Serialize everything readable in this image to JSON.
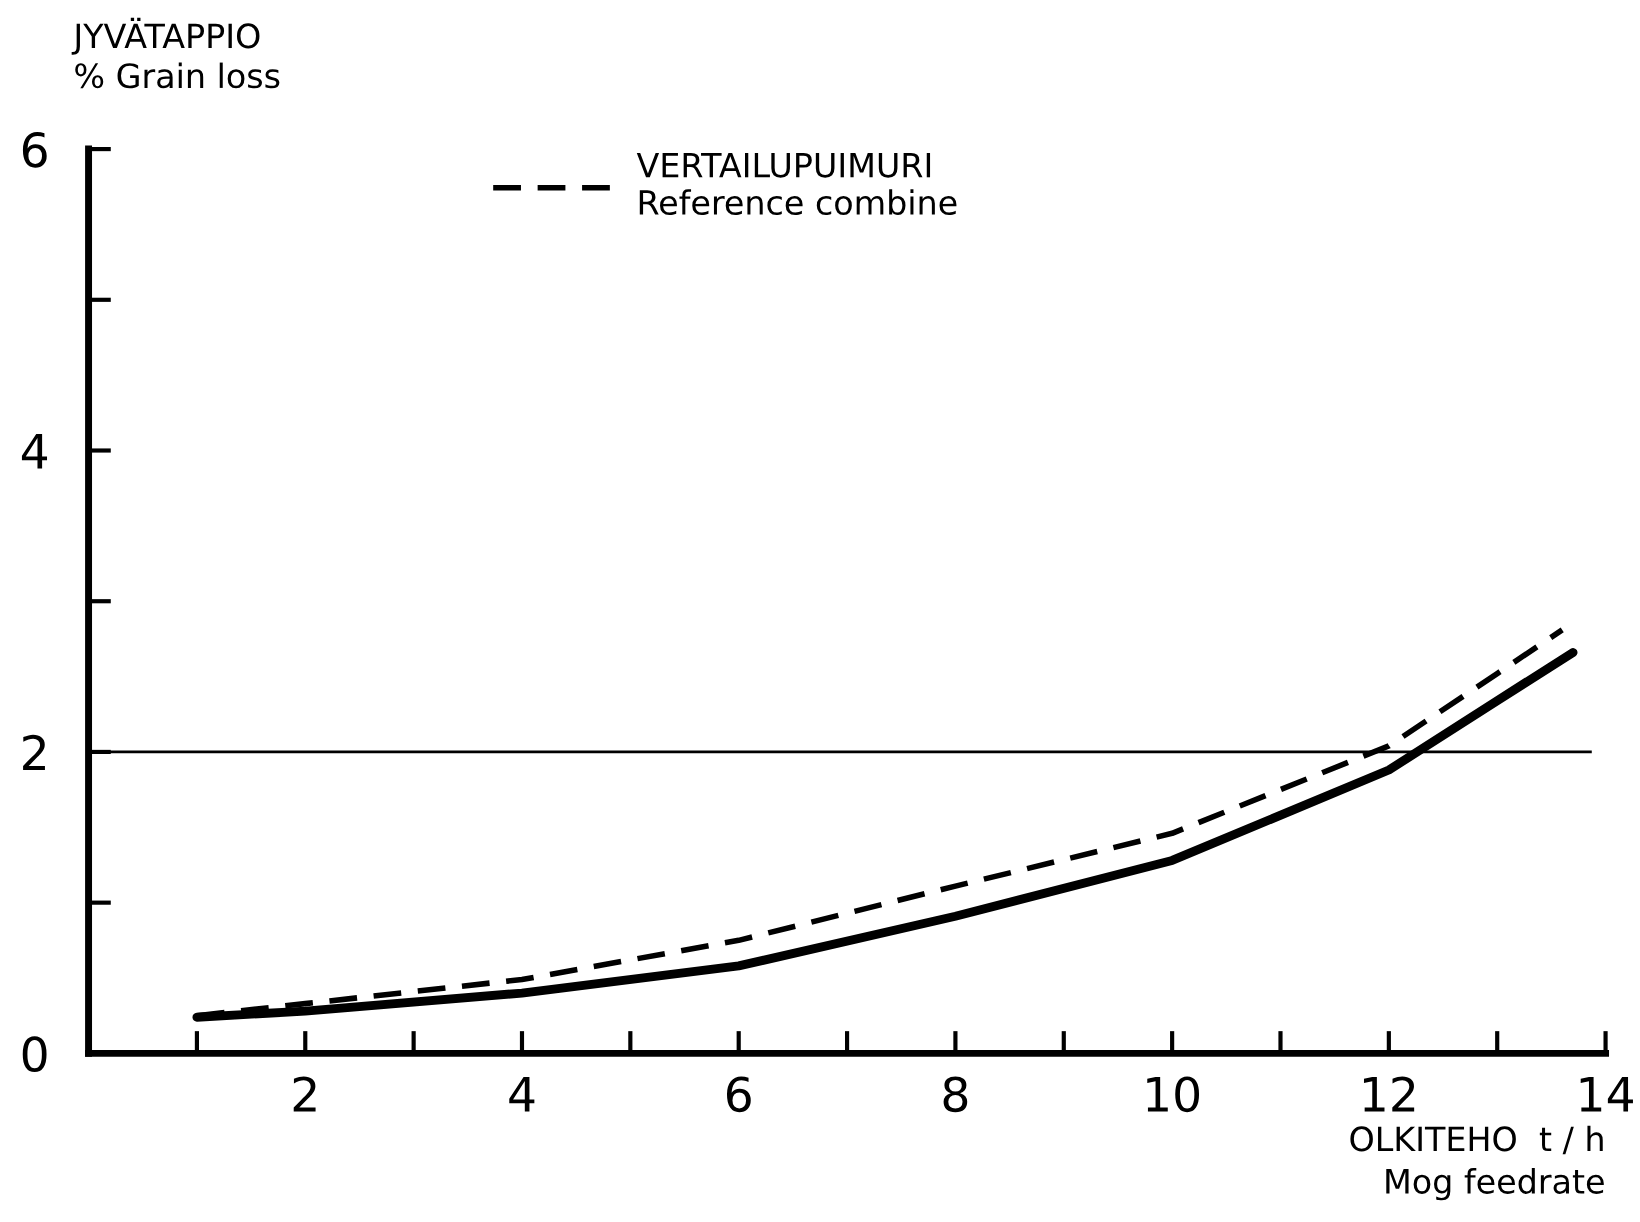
{
  "chart_data": {
    "type": "line",
    "ylabel": "JYVÄTAPPIO\n% Grain loss",
    "xlabel": "OLKITEHO  t / h\nMog feedrate",
    "x": [
      1,
      2,
      4,
      6,
      8,
      10,
      12,
      13,
      13.7
    ],
    "series": [
      {
        "color": "#000000",
        "line_style": "solid",
        "values": [
          0.24,
          0.28,
          0.4,
          0.58,
          0.91,
          1.28,
          1.88,
          2.34,
          2.66
        ]
      },
      {
        "name": "VERTAILUPUIMURI\nReference combine",
        "color": "#000000",
        "line_style": "dashed",
        "x": [
          1,
          2,
          4,
          6,
          8,
          10,
          12,
          13,
          13.6
        ],
        "values": [
          0.25,
          0.33,
          0.49,
          0.75,
          1.11,
          1.46,
          2.04,
          2.52,
          2.81
        ]
      }
    ],
    "ref_lines": [
      {
        "axis": "y",
        "value": 2,
        "color": "#000000"
      }
    ],
    "xlim": [
      0,
      14
    ],
    "xticks": [
      {
        "value": 1,
        "label": null
      },
      2,
      {
        "value": 3,
        "label": null
      },
      4,
      {
        "value": 5,
        "label": null
      },
      6,
      {
        "value": 7,
        "label": null
      },
      8,
      {
        "value": 9,
        "label": null
      },
      10,
      {
        "value": 11,
        "label": null
      },
      12,
      {
        "value": 13,
        "label": null
      },
      14
    ],
    "ylim": [
      0,
      6
    ],
    "yticks": [
      0,
      {
        "value": 1,
        "label": null
      },
      2,
      {
        "value": 3,
        "label": null
      },
      4,
      {
        "value": 5,
        "label": null
      },
      6
    ],
    "grid": false,
    "legend": "top"
  }
}
